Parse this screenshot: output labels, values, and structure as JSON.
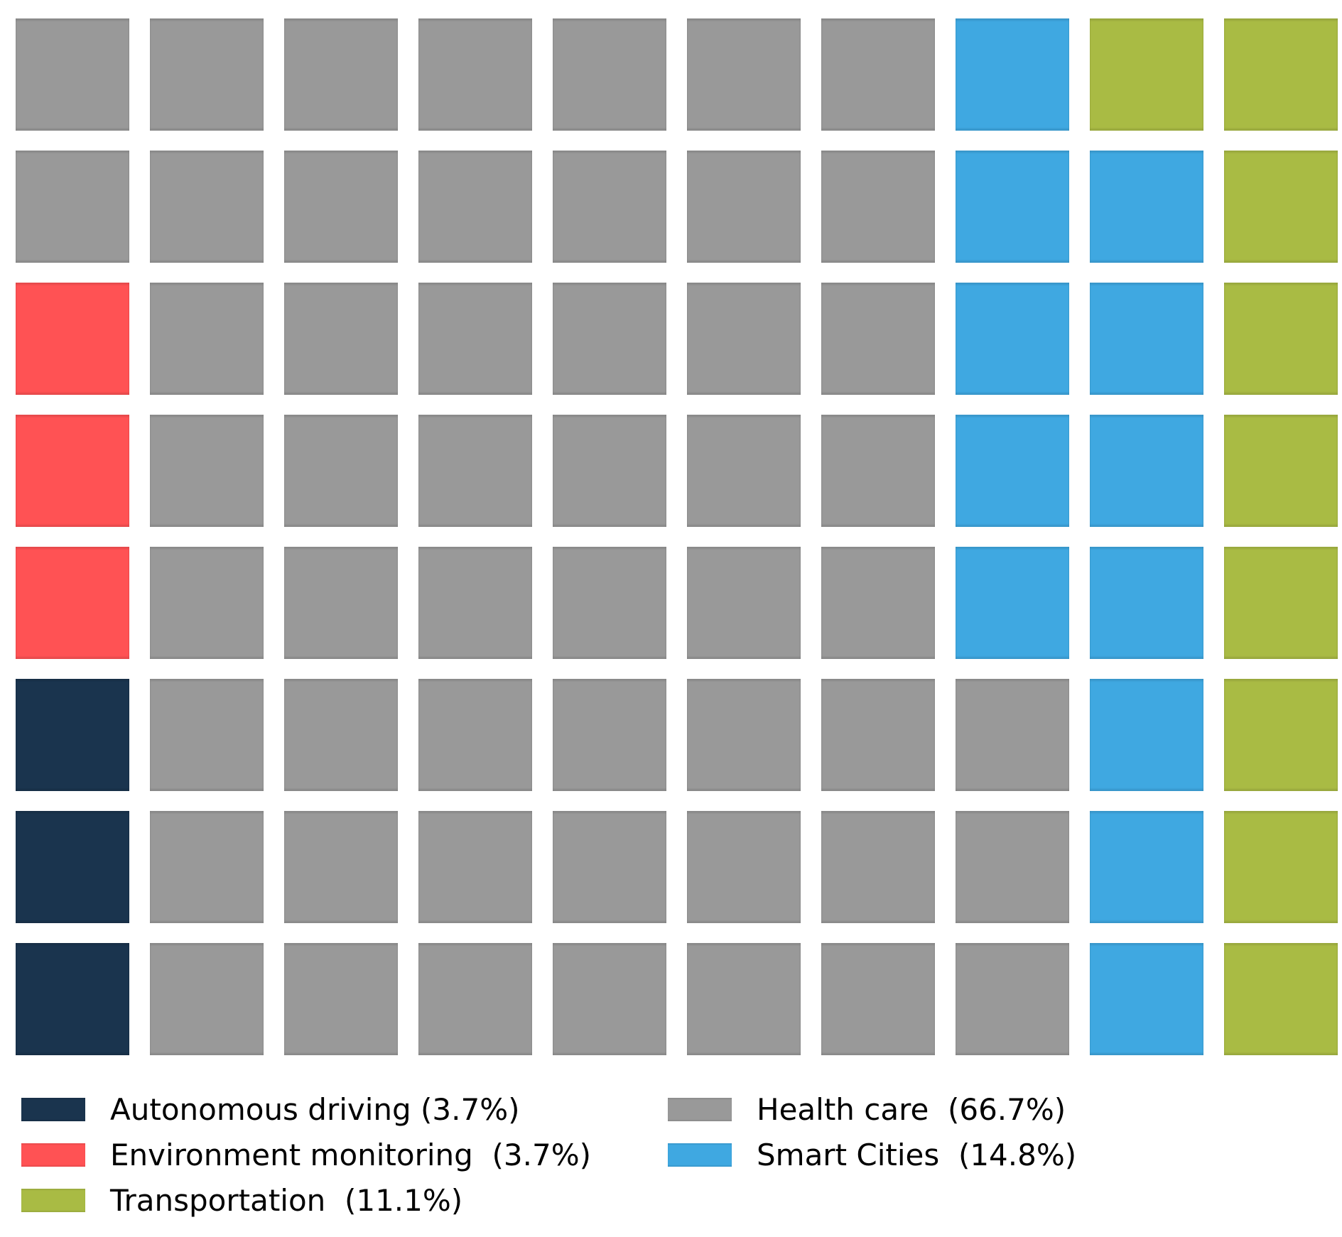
{
  "chart_data": {
    "type": "waffle",
    "title": "",
    "grid": {
      "rows": 8,
      "cols": 10,
      "total_squares": 80
    },
    "categories": [
      "Autonomous driving",
      "Environment monitoring",
      "Transportation",
      "Health care",
      "Smart Cities"
    ],
    "values_percent": [
      3.7,
      3.7,
      11.1,
      66.7,
      14.8
    ],
    "squares_per_category": [
      3,
      3,
      9,
      53,
      12
    ],
    "colors": [
      "#1a344e",
      "#ff5254",
      "#a9bb44",
      "#999999",
      "#3fa8e1"
    ],
    "legend_position": "bottom",
    "fill_order": "bottom-left, column by column upward"
  },
  "colors": {
    "autonomous": "#1a344e",
    "environment": "#ff5254",
    "health": "#999999",
    "smart": "#3fa8e1",
    "transportation": "#a9bb44",
    "background": "#ffffff",
    "text": "#000000"
  },
  "grid": {
    "key_map": {
      "A": "autonomous",
      "E": "environment",
      "H": "health",
      "S": "smart",
      "T": "transportation"
    },
    "rows": [
      "HHHHHHHSTT",
      "HHHHHHHSST",
      "EHHHHHHSST",
      "EHHHHHHSST",
      "EHHHHHHSST",
      "AHHHHHHHST",
      "AHHHHHHHST",
      "AHHHHHHHST"
    ]
  },
  "legend": {
    "columns": [
      {
        "items": [
          {
            "key": "autonomous",
            "label": "Autonomous driving (3.7%)"
          },
          {
            "key": "environment",
            "label": "Environment monitoring  (3.7%)"
          },
          {
            "key": "transportation",
            "label": "Transportation  (11.1%)"
          }
        ]
      },
      {
        "items": [
          {
            "key": "health",
            "label": "Health care  (66.7%)"
          },
          {
            "key": "smart",
            "label": "Smart Cities  (14.8%)"
          }
        ]
      }
    ]
  }
}
